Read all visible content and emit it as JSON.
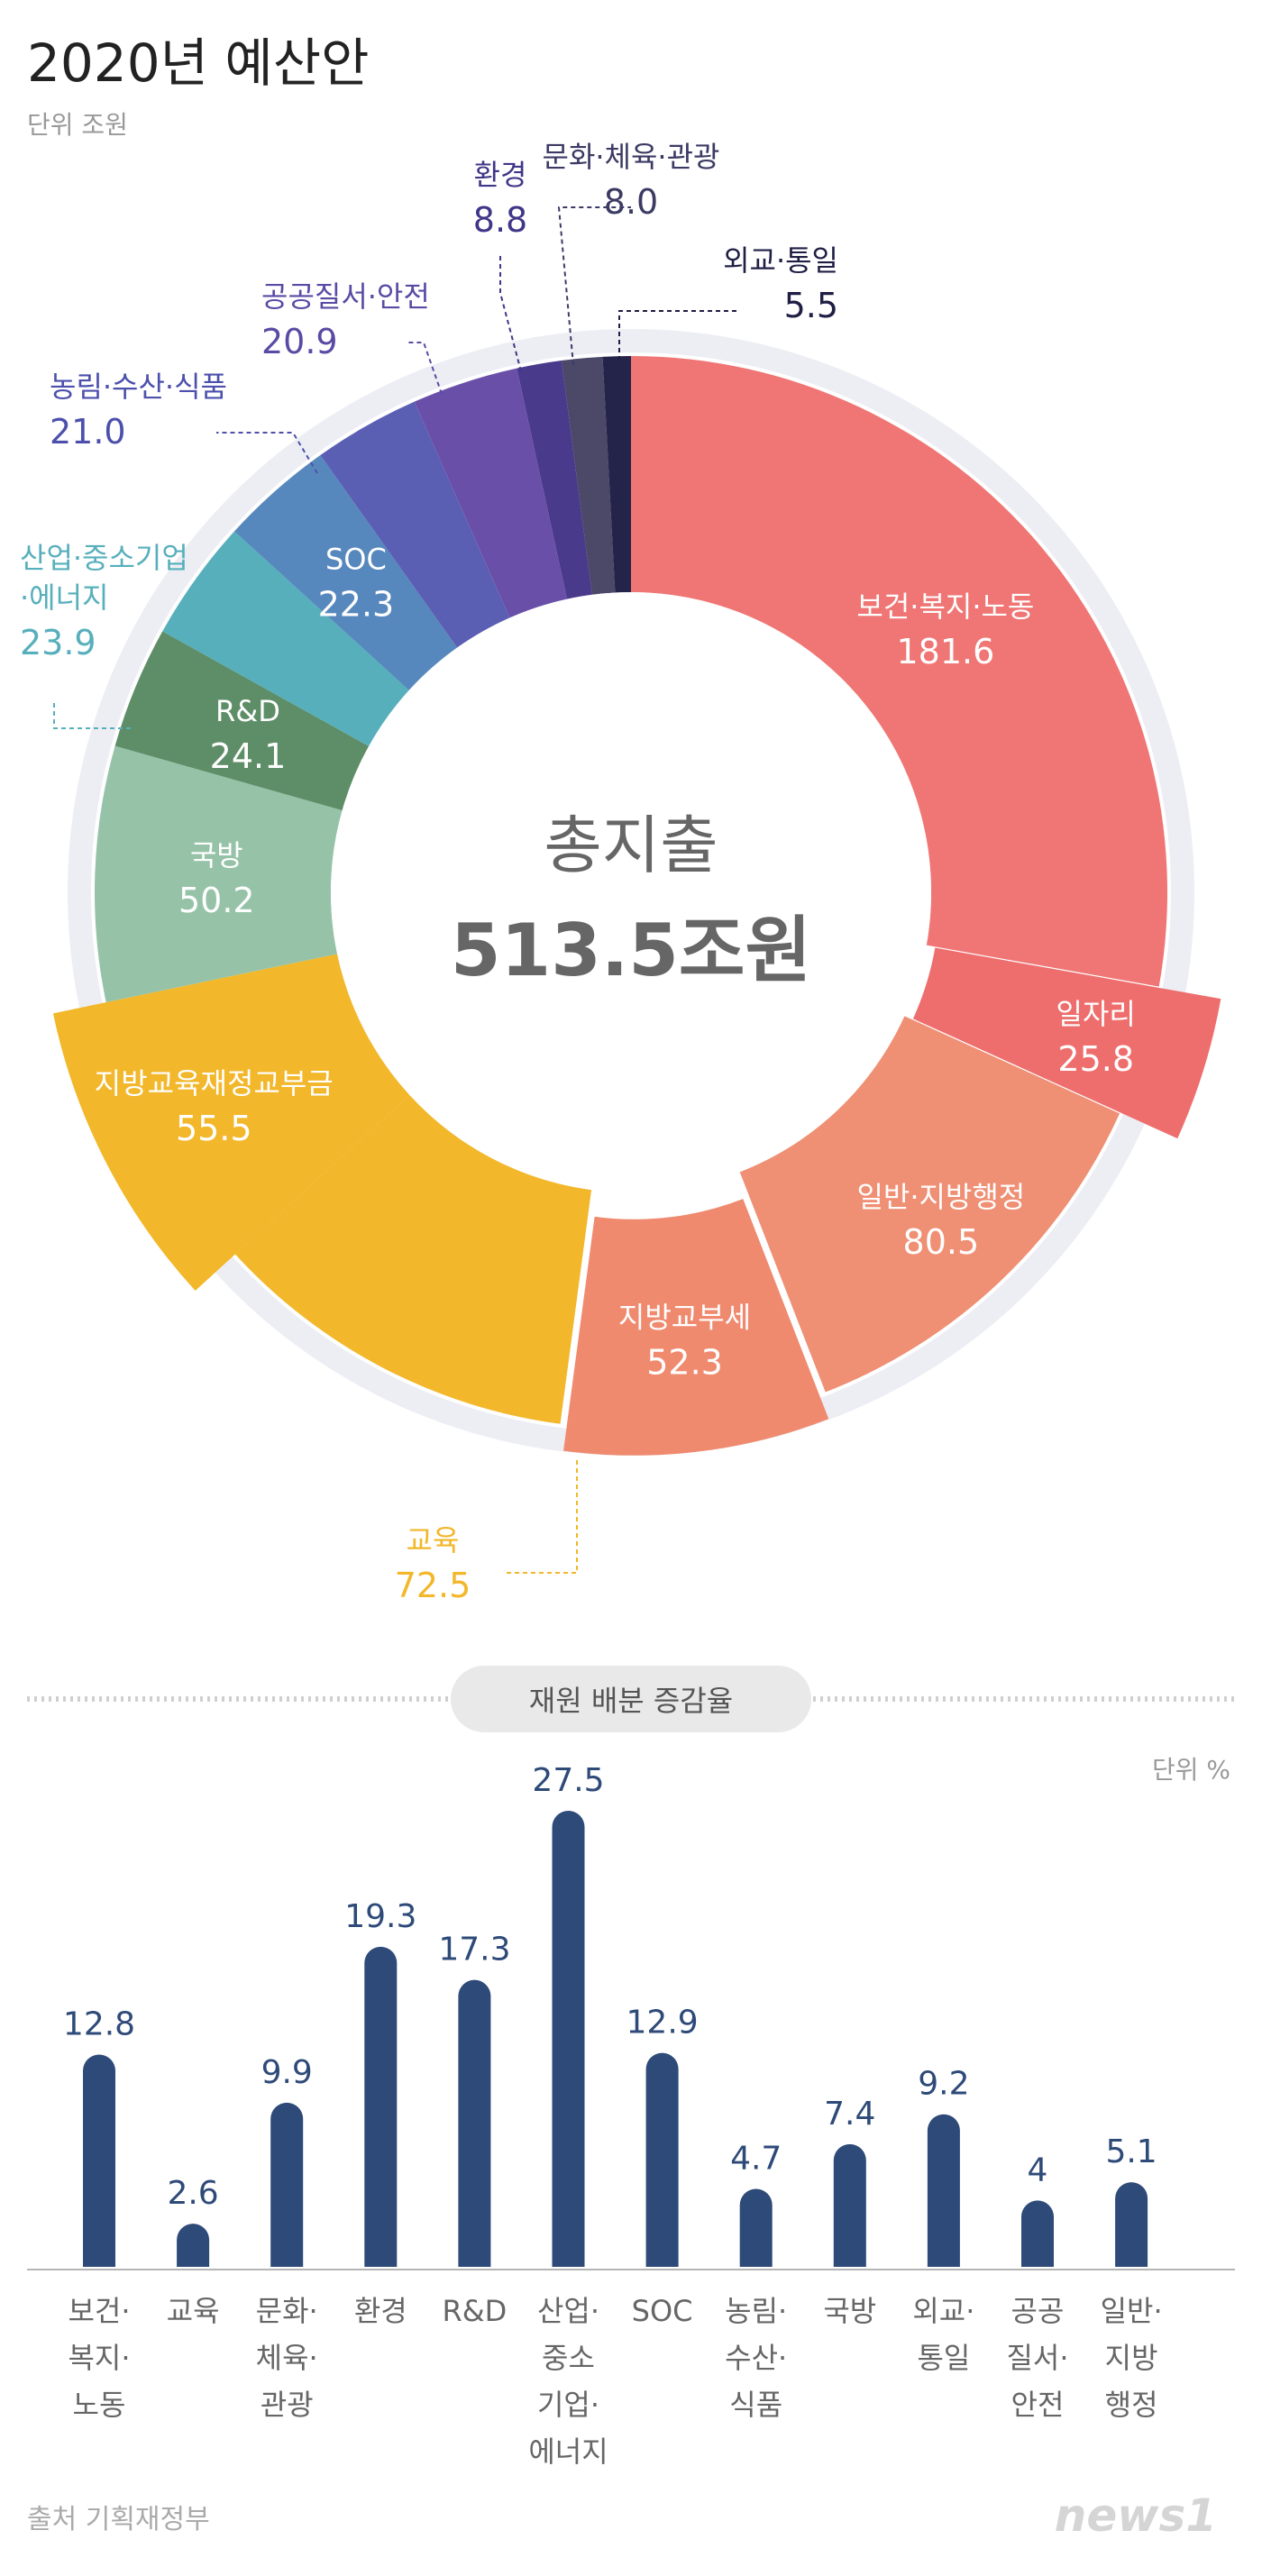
{
  "title": "2020년 예산안",
  "unit_top": "단위 조원",
  "center": {
    "line1": "총지출",
    "line2": "513.5조원"
  },
  "section_label": "재원 배분 증감율",
  "unit_bottom": "단위 %",
  "source": "출처 기획재정부",
  "logo": "news1",
  "colors": {
    "health": "#ef7674",
    "jobs": "#ee6e6e",
    "admin": "#ef8f74",
    "grant": "#ef8a6e",
    "education": "#f2b72a",
    "defense": "#96c3a8",
    "rnd": "#5e8e68",
    "industry": "#57afbc",
    "soc": "#5788bd",
    "agri": "#5b5fb4",
    "safety": "#6a4fa8",
    "env": "#4a3a8c",
    "culture": "#4b4868",
    "diplomacy": "#24234a",
    "bar": "#2e4a78"
  },
  "chart_data": [
    {
      "type": "pie",
      "title": "2020년 예산안",
      "unit": "조원",
      "slices": [
        {
          "label": "보건·복지·노동",
          "value": 181.6
        },
        {
          "label": "일자리",
          "value": 25.8
        },
        {
          "label": "일반·지방행정",
          "value": 80.5
        },
        {
          "label": "지방교부세",
          "value": 52.3
        },
        {
          "label": "교육",
          "value": 72.5
        },
        {
          "label": "지방교육재정교부금",
          "value": 55.5
        },
        {
          "label": "국방",
          "value": 50.2
        },
        {
          "label": "R&D",
          "value": 24.1
        },
        {
          "label": "산업·중소기업·에너지",
          "value": 23.9
        },
        {
          "label": "SOC",
          "value": 22.3
        },
        {
          "label": "농림·수산·식품",
          "value": 21.0
        },
        {
          "label": "공공질서·안전",
          "value": 20.9
        },
        {
          "label": "환경",
          "value": 8.8
        },
        {
          "label": "문화·체육·관광",
          "value": 8.0
        },
        {
          "label": "외교·통일",
          "value": 5.5
        }
      ]
    },
    {
      "type": "bar",
      "title": "재원 배분 증감율",
      "unit": "%",
      "categories": [
        "보건·복지·노동",
        "교육",
        "문화·체육·관광",
        "환경",
        "R&D",
        "산업·중소기업·에너지",
        "SOC",
        "농림·수산·식품",
        "국방",
        "외교·통일",
        "공공질서·안전",
        "일반·지방행정"
      ],
      "category_lines": [
        [
          "보건·",
          "복지·",
          "노동"
        ],
        [
          "교육"
        ],
        [
          "문화·",
          "체육·",
          "관광"
        ],
        [
          "환경"
        ],
        [
          "R&D"
        ],
        [
          "산업·",
          "중소",
          "기업·",
          "에너지"
        ],
        [
          "SOC"
        ],
        [
          "농림·",
          "수산·",
          "식품"
        ],
        [
          "국방"
        ],
        [
          "외교·",
          "통일"
        ],
        [
          "공공",
          "질서·",
          "안전"
        ],
        [
          "일반·",
          "지방",
          "행정"
        ]
      ],
      "values": [
        12.8,
        2.6,
        9.9,
        19.3,
        17.3,
        27.5,
        12.9,
        4.7,
        7.4,
        9.2,
        4,
        5.1
      ],
      "value_labels": [
        "12.8",
        "2.6",
        "9.9",
        "19.3",
        "17.3",
        "27.5",
        "12.9",
        "4.7",
        "7.4",
        "9.2",
        "4",
        "5.1"
      ]
    }
  ]
}
